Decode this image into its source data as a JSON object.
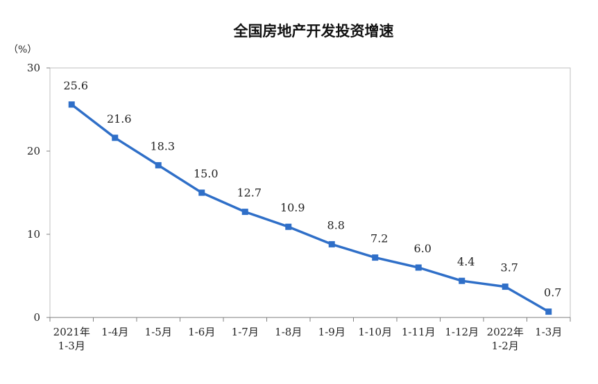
{
  "chart_data": {
    "type": "line",
    "title": "全国房地产开发投资增速",
    "ylabel": "（%）",
    "ylim": [
      0,
      30
    ],
    "yticks": [
      0,
      10,
      20,
      30
    ],
    "grid": false,
    "colors": {
      "line": "#2f6fc8"
    },
    "categories": [
      [
        "2021年",
        "1-3月"
      ],
      [
        "1-4月"
      ],
      [
        "1-5月"
      ],
      [
        "1-6月"
      ],
      [
        "1-7月"
      ],
      [
        "1-8月"
      ],
      [
        "1-9月"
      ],
      [
        "1-10月"
      ],
      [
        "1-11月"
      ],
      [
        "1-12月"
      ],
      [
        "2022年",
        "1-2月"
      ],
      [
        "1-3月"
      ]
    ],
    "series": [
      {
        "values": [
          25.6,
          21.6,
          18.3,
          15.0,
          12.7,
          10.9,
          8.8,
          7.2,
          6.0,
          4.4,
          3.7,
          0.7
        ],
        "labels": [
          "25.6",
          "21.6",
          "18.3",
          "15.0",
          "12.7",
          "10.9",
          "8.8",
          "7.2",
          "6.0",
          "4.4",
          "3.7",
          "0.7"
        ]
      }
    ]
  }
}
